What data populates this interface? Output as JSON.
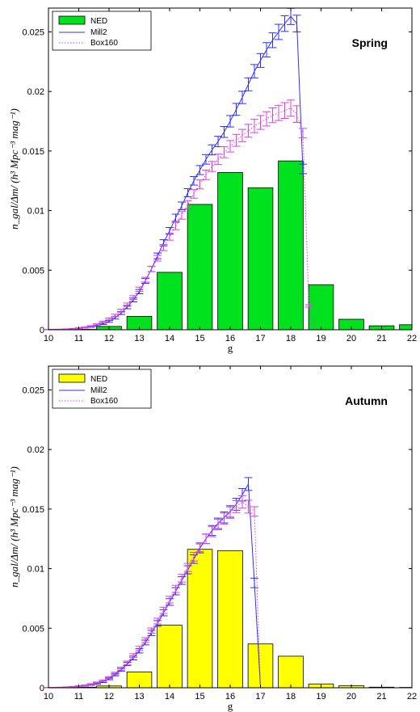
{
  "chart_data": [
    {
      "type": "bar",
      "panel_label": "Spring",
      "xlabel": "g",
      "ylabel": "n_gal/Δm/ (h³ Mpc⁻³ mag⁻¹)",
      "xlim": [
        10,
        22
      ],
      "ylim": [
        0,
        0.027
      ],
      "xticks": [
        "10",
        "11",
        "12",
        "13",
        "14",
        "15",
        "16",
        "17",
        "18",
        "19",
        "20",
        "21",
        "22"
      ],
      "yticks": [
        "0",
        "0.005",
        "0.01",
        "0.015",
        "0.02",
        "0.025"
      ],
      "legend": [
        "NED",
        "Mill2",
        "Box160"
      ],
      "legend_position": "top-left",
      "bar_color": "#00e21d",
      "bars": {
        "x": [
          11.0,
          11.5,
          12.0,
          13.0,
          14.0,
          15.0,
          16.0,
          17.0,
          18.0,
          19.0,
          20.0,
          21.0,
          22.0
        ],
        "values": [
          2e-05,
          3e-05,
          0.00028,
          0.00112,
          0.00482,
          0.01052,
          0.0132,
          0.01192,
          0.01417,
          0.00378,
          0.00088,
          0.00033,
          0.00042
        ]
      },
      "series": [
        {
          "name": "Mill2",
          "color": "#2f2fff",
          "style": "solid",
          "x": [
            10.0,
            10.2,
            10.4,
            10.6,
            10.8,
            11.0,
            11.2,
            11.4,
            11.6,
            11.8,
            12.0,
            12.2,
            12.4,
            12.6,
            12.8,
            13.0,
            13.2,
            13.4,
            13.6,
            13.8,
            14.0,
            14.2,
            14.4,
            14.6,
            14.8,
            15.0,
            15.2,
            15.4,
            15.6,
            15.8,
            16.0,
            16.2,
            16.4,
            16.6,
            16.8,
            17.0,
            17.2,
            17.4,
            17.6,
            17.8,
            18.0,
            18.2,
            18.4
          ],
          "y": [
            1e-05,
            2e-05,
            3e-05,
            5e-05,
            8e-05,
            0.00012,
            0.00018,
            0.00025,
            0.00035,
            0.0005,
            0.0007,
            0.001,
            0.0014,
            0.0019,
            0.0025,
            0.0032,
            0.0041,
            0.0051,
            0.0062,
            0.0073,
            0.0083,
            0.0094,
            0.0104,
            0.0115,
            0.0125,
            0.0134,
            0.0143,
            0.0151,
            0.0158,
            0.0166,
            0.0175,
            0.0185,
            0.0195,
            0.0206,
            0.0217,
            0.0226,
            0.0235,
            0.0243,
            0.025,
            0.0257,
            0.0263,
            0.0257,
            0.0135
          ],
          "yerr": [
            1e-05,
            1e-05,
            1e-05,
            2e-05,
            2e-05,
            3e-05,
            3e-05,
            4e-05,
            5e-05,
            6e-05,
            8e-05,
            0.0001,
            0.00012,
            0.00014,
            0.00016,
            0.00018,
            0.0002,
            0.00022,
            0.00024,
            0.00026,
            0.00028,
            0.0003,
            0.00032,
            0.00034,
            0.00036,
            0.00038,
            0.0004,
            0.00042,
            0.00044,
            0.00046,
            0.00048,
            0.0005,
            0.00052,
            0.00054,
            0.00056,
            0.00058,
            0.0006,
            0.00062,
            0.00064,
            0.00066,
            0.00068,
            0.0007,
            0.0004
          ]
        },
        {
          "name": "Box160",
          "color": "#e23de2",
          "style": "dotted",
          "x": [
            10.0,
            10.2,
            10.4,
            10.6,
            10.8,
            11.0,
            11.2,
            11.4,
            11.6,
            11.8,
            12.0,
            12.2,
            12.4,
            12.6,
            12.8,
            13.0,
            13.2,
            13.4,
            13.6,
            13.8,
            14.0,
            14.2,
            14.4,
            14.6,
            14.8,
            15.0,
            15.2,
            15.4,
            15.6,
            15.8,
            16.0,
            16.2,
            16.4,
            16.6,
            16.8,
            17.0,
            17.2,
            17.4,
            17.6,
            17.8,
            18.0,
            18.2,
            18.4,
            18.6,
            18.8
          ],
          "y": [
            1e-05,
            2e-05,
            3e-05,
            5e-05,
            8e-05,
            0.00013,
            0.0002,
            0.0003,
            0.00045,
            0.00065,
            0.0009,
            0.0012,
            0.0016,
            0.0021,
            0.0027,
            0.0034,
            0.0042,
            0.0051,
            0.006,
            0.0069,
            0.0078,
            0.0087,
            0.0096,
            0.0105,
            0.0114,
            0.0122,
            0.013,
            0.0137,
            0.0143,
            0.0149,
            0.0154,
            0.0159,
            0.0163,
            0.0167,
            0.0171,
            0.0174,
            0.0177,
            0.018,
            0.0182,
            0.0184,
            0.0186,
            0.0181,
            0.0165,
            0.002,
            0.0
          ],
          "yerr": [
            1e-05,
            1e-05,
            1e-05,
            2e-05,
            2e-05,
            3e-05,
            3e-05,
            4e-05,
            5e-05,
            6e-05,
            8e-05,
            0.0001,
            0.00012,
            0.00014,
            0.00016,
            0.00018,
            0.0002,
            0.00022,
            0.00024,
            0.00026,
            0.00028,
            0.0003,
            0.00032,
            0.00034,
            0.00036,
            0.00038,
            0.0004,
            0.00042,
            0.00044,
            0.00046,
            0.00048,
            0.0005,
            0.00052,
            0.00054,
            0.00056,
            0.00058,
            0.0006,
            0.00062,
            0.00064,
            0.00066,
            0.00068,
            0.0007,
            0.0004,
            0.0001,
            0.0
          ]
        }
      ]
    },
    {
      "type": "bar",
      "panel_label": "Autumn",
      "xlabel": "g",
      "ylabel": "n_gal/Δm/ (h³ Mpc⁻³ mag⁻¹)",
      "xlim": [
        10,
        22
      ],
      "ylim": [
        0,
        0.027
      ],
      "xticks": [
        "10",
        "11",
        "12",
        "13",
        "14",
        "15",
        "16",
        "17",
        "18",
        "19",
        "20",
        "21",
        "22"
      ],
      "yticks": [
        "0",
        "0.005",
        "0.01",
        "0.015",
        "0.02",
        "0.025"
      ],
      "legend": [
        "NED",
        "Mill2",
        "Box160"
      ],
      "legend_position": "top-left",
      "bar_color": "#ffff00",
      "bars": {
        "x": [
          11.0,
          11.5,
          12.0,
          13.0,
          14.0,
          15.0,
          16.0,
          17.0,
          18.0,
          19.0,
          20.0,
          21.0,
          22.0
        ],
        "values": [
          3e-05,
          5e-05,
          0.00015,
          0.00133,
          0.00525,
          0.01162,
          0.01151,
          0.00368,
          0.00265,
          0.00032,
          0.00018,
          5e-05,
          3e-05
        ]
      },
      "series": [
        {
          "name": "Mill2",
          "color": "#2f2fff",
          "style": "solid",
          "x": [
            10.0,
            10.2,
            10.4,
            10.6,
            10.8,
            11.0,
            11.2,
            11.4,
            11.6,
            11.8,
            12.0,
            12.2,
            12.4,
            12.6,
            12.8,
            13.0,
            13.2,
            13.4,
            13.6,
            13.8,
            14.0,
            14.2,
            14.4,
            14.6,
            14.8,
            15.0,
            15.2,
            15.4,
            15.6,
            15.8,
            16.0,
            16.2,
            16.4,
            16.6,
            16.8,
            17.0
          ],
          "y": [
            1e-05,
            2e-05,
            3e-05,
            5e-05,
            8e-05,
            0.00012,
            0.00018,
            0.00025,
            0.00035,
            0.0005,
            0.00075,
            0.0011,
            0.0015,
            0.002,
            0.0025,
            0.0031,
            0.0038,
            0.0046,
            0.0054,
            0.0063,
            0.0072,
            0.0081,
            0.009,
            0.0099,
            0.0108,
            0.0117,
            0.0125,
            0.0132,
            0.0138,
            0.0143,
            0.0148,
            0.0154,
            0.0162,
            0.0171,
            0.0088,
            0.0001
          ],
          "yerr": [
            1e-05,
            1e-05,
            1e-05,
            2e-05,
            2e-05,
            3e-05,
            3e-05,
            4e-05,
            5e-05,
            6e-05,
            8e-05,
            0.0001,
            0.00012,
            0.00014,
            0.00016,
            0.00018,
            0.0002,
            0.00022,
            0.00024,
            0.00026,
            0.00028,
            0.0003,
            0.00032,
            0.00034,
            0.00036,
            0.00038,
            0.0004,
            0.00042,
            0.00044,
            0.00046,
            0.00048,
            0.0005,
            0.00052,
            0.00054,
            0.0004,
            0.0
          ]
        },
        {
          "name": "Box160",
          "color": "#e23de2",
          "style": "dotted",
          "x": [
            10.0,
            10.2,
            10.4,
            10.6,
            10.8,
            11.0,
            11.2,
            11.4,
            11.6,
            11.8,
            12.0,
            12.2,
            12.4,
            12.6,
            12.8,
            13.0,
            13.2,
            13.4,
            13.6,
            13.8,
            14.0,
            14.2,
            14.4,
            14.6,
            14.8,
            15.0,
            15.2,
            15.4,
            15.6,
            15.8,
            16.0,
            16.2,
            16.4,
            16.6,
            16.8,
            17.0
          ],
          "y": [
            1e-05,
            2e-05,
            3e-05,
            5e-05,
            8e-05,
            0.00013,
            0.0002,
            0.0003,
            0.00043,
            0.0006,
            0.00085,
            0.0012,
            0.0016,
            0.0021,
            0.0027,
            0.0033,
            0.004,
            0.0048,
            0.0056,
            0.0065,
            0.0074,
            0.0083,
            0.0092,
            0.0101,
            0.011,
            0.0118,
            0.0125,
            0.0131,
            0.0137,
            0.0142,
            0.0147,
            0.0152,
            0.0156,
            0.0152,
            0.0148,
            0.0001
          ],
          "yerr": [
            1e-05,
            1e-05,
            1e-05,
            2e-05,
            2e-05,
            3e-05,
            3e-05,
            4e-05,
            5e-05,
            6e-05,
            8e-05,
            0.0001,
            0.00012,
            0.00014,
            0.00016,
            0.00018,
            0.0002,
            0.00022,
            0.00024,
            0.00026,
            0.00028,
            0.0003,
            0.00032,
            0.00034,
            0.00036,
            0.00038,
            0.0004,
            0.00042,
            0.00044,
            0.00046,
            0.00048,
            0.0005,
            0.00052,
            0.00054,
            0.0004,
            0.0
          ]
        }
      ]
    }
  ]
}
